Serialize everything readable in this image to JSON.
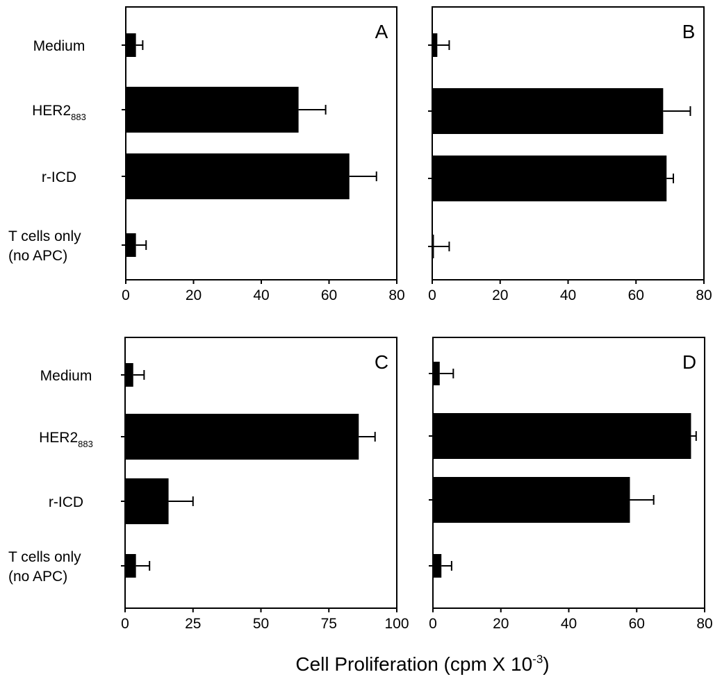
{
  "figure": {
    "xlabel_main": "Cell Proliferation (cpm X 10",
    "xlabel_sup": "-3",
    "xlabel_end": ")"
  },
  "chart_data": [
    {
      "type": "bar",
      "panel_label": "A",
      "categories": [
        "Medium",
        "HER2883",
        "r-ICD",
        "T cells only (no APC)"
      ],
      "category_labels": [
        {
          "lines": [
            "Medium"
          ]
        },
        {
          "base": "HER2",
          "sub": "883"
        },
        {
          "lines": [
            "r-ICD"
          ]
        },
        {
          "lines": [
            "T cells only",
            "(no APC)"
          ]
        }
      ],
      "values": [
        3,
        51,
        66,
        3
      ],
      "errors": [
        2,
        8,
        8,
        3
      ],
      "xlim": [
        0,
        80
      ],
      "xticks": [
        0,
        20,
        40,
        60,
        80
      ],
      "color": "#000000"
    },
    {
      "type": "bar",
      "panel_label": "B",
      "categories": [
        "Medium",
        "HER2883",
        "r-ICD",
        "T cells only (no APC)"
      ],
      "values": [
        1.5,
        68,
        69,
        0.5
      ],
      "errors": [
        3.5,
        8,
        2,
        4.5
      ],
      "xlim": [
        0,
        80
      ],
      "xticks": [
        0,
        20,
        40,
        60,
        80
      ],
      "color": "#000000"
    },
    {
      "type": "bar",
      "panel_label": "C",
      "categories": [
        "Medium",
        "HER2883",
        "r-ICD",
        "T cells only (no APC)"
      ],
      "category_labels": [
        {
          "lines": [
            "Medium"
          ]
        },
        {
          "base": "HER2",
          "sub": "883"
        },
        {
          "lines": [
            "r-ICD"
          ]
        },
        {
          "lines": [
            "T cells only",
            "(no APC)"
          ]
        }
      ],
      "values": [
        3,
        86,
        16,
        4
      ],
      "errors": [
        4,
        6,
        9,
        5
      ],
      "xlim": [
        0,
        100
      ],
      "xticks": [
        0,
        25,
        50,
        75,
        100
      ],
      "color": "#000000"
    },
    {
      "type": "bar",
      "panel_label": "D",
      "categories": [
        "Medium",
        "HER2883",
        "r-ICD",
        "T cells only (no APC)"
      ],
      "values": [
        2,
        76,
        58,
        2.5
      ],
      "errors": [
        4,
        1.5,
        7,
        3
      ],
      "xlim": [
        0,
        80
      ],
      "xticks": [
        0,
        20,
        40,
        60,
        80
      ],
      "color": "#000000"
    }
  ]
}
